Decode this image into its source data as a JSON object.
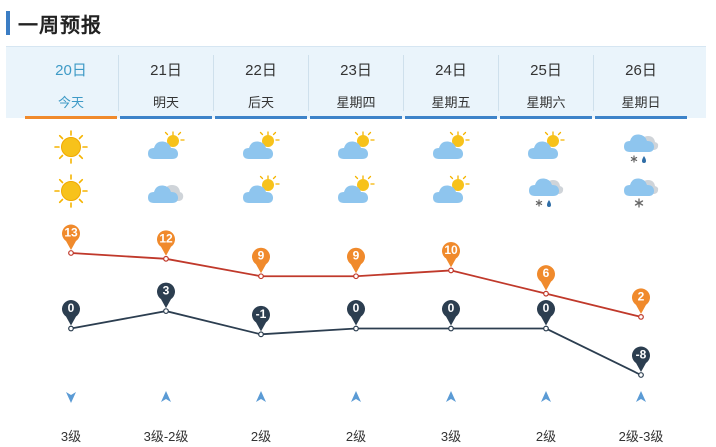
{
  "header": {
    "title": "一周预报"
  },
  "colors": {
    "accent": "#3d83c9",
    "today": "#3e9ac6",
    "today_underline": "#f08a2c",
    "high_line": "#c0392b",
    "high_marker": "#f08a2c",
    "low_line": "#2c3e50",
    "low_marker": "#2c3e50",
    "wind": "#5b9bd5"
  },
  "days": [
    {
      "date": "20日",
      "name": "今天",
      "day_icon": "sunny-icon",
      "night_icon": "sunny-icon",
      "wind": "3级",
      "wind_dir": "down"
    },
    {
      "date": "21日",
      "name": "明天",
      "day_icon": "partly-cloudy-icon",
      "night_icon": "cloudy-icon",
      "wind": "3级-2级",
      "wind_dir": "up"
    },
    {
      "date": "22日",
      "name": "后天",
      "day_icon": "partly-cloudy-icon",
      "night_icon": "partly-cloudy-icon",
      "wind": "2级",
      "wind_dir": "up"
    },
    {
      "date": "23日",
      "name": "星期四",
      "day_icon": "partly-cloudy-icon",
      "night_icon": "partly-cloudy-icon",
      "wind": "2级",
      "wind_dir": "up"
    },
    {
      "date": "24日",
      "name": "星期五",
      "day_icon": "partly-cloudy-icon",
      "night_icon": "partly-cloudy-icon",
      "wind": "3级",
      "wind_dir": "up"
    },
    {
      "date": "25日",
      "name": "星期六",
      "day_icon": "partly-cloudy-icon",
      "night_icon": "sleet-icon",
      "wind": "2级",
      "wind_dir": "up"
    },
    {
      "date": "26日",
      "name": "星期日",
      "day_icon": "sleet-icon",
      "night_icon": "snow-icon",
      "wind": "2级-3级",
      "wind_dir": "up"
    }
  ],
  "chart_data": {
    "type": "line",
    "categories": [
      "20日",
      "21日",
      "22日",
      "23日",
      "24日",
      "25日",
      "26日"
    ],
    "series": [
      {
        "values": [
          13,
          12,
          9,
          9,
          10,
          6,
          2
        ]
      },
      {
        "values": [
          0,
          3,
          -1,
          0,
          0,
          0,
          -8
        ]
      }
    ],
    "ylim": [
      -8,
      13
    ],
    "grid": false
  }
}
